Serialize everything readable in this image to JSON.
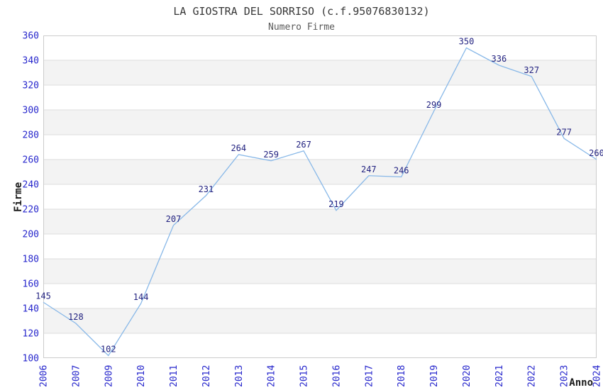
{
  "header": {
    "title": "LA GIOSTRA DEL SORRISO (c.f.95076830132)",
    "subtitle": "Numero Firme"
  },
  "chart_data": {
    "type": "line",
    "title": "LA GIOSTRA DEL SORRISO (c.f.95076830132)",
    "subtitle": "Numero Firme",
    "xlabel": "Anno",
    "ylabel": "Firme",
    "categories": [
      "2006",
      "2007",
      "2009",
      "2010",
      "2011",
      "2012",
      "2013",
      "2014",
      "2015",
      "2016",
      "2017",
      "2018",
      "2019",
      "2020",
      "2021",
      "2022",
      "2023",
      "2024"
    ],
    "values": [
      145,
      128,
      102,
      144,
      207,
      231,
      264,
      259,
      267,
      219,
      247,
      246,
      299,
      350,
      336,
      327,
      277,
      260
    ],
    "ylim": [
      100,
      360
    ],
    "ytick_step": 20,
    "grid": "alternating-horizontal-bands",
    "legend_position": "none",
    "data_labels_visible": true,
    "markers": "none",
    "colors": {
      "line": "#88b8e8",
      "tick_label": "#2626cc",
      "data_label": "#222280",
      "band": "#f3f3f3",
      "plot_border": "#cccccc",
      "gridline": "#dedede",
      "title": "#383838",
      "subtitle": "#5a5a5a",
      "axis_title": "#1a1a1a",
      "plot_background": "#ffffff"
    }
  }
}
